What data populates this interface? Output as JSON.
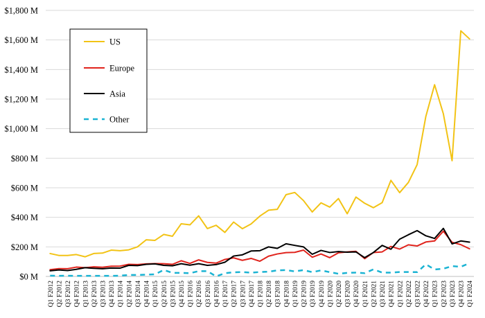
{
  "chart_data": {
    "type": "line",
    "title": "",
    "xlabel": "",
    "ylabel": "",
    "ylim": [
      0,
      1800
    ],
    "grid": "horizontal",
    "legend_position": "top-left",
    "y_ticks": [
      0,
      200,
      400,
      600,
      800,
      1000,
      1200,
      1400,
      1600,
      1800
    ],
    "y_tick_labels": [
      "$0 M",
      "$200 M",
      "$400 M",
      "$600 M",
      "$800 M",
      "$1,000 M",
      "$1,200 M",
      "$1,400 M",
      "$1,600 M",
      "$1,800 M"
    ],
    "categories": [
      "Q1 F2012",
      "Q2 F2012",
      "Q3 F2012",
      "Q4 F2012",
      "Q1 F2013",
      "Q2 F2013",
      "Q3 F2013",
      "Q4 F2013",
      "Q1 F2014",
      "Q2 F2014",
      "Q3 F2014",
      "Q4 F2014",
      "Q1 F2015",
      "Q2 F2015",
      "Q3 F2015",
      "Q4 F2015",
      "Q1 F2016",
      "Q2 F2016",
      "Q3 F2016",
      "Q4 F2016",
      "Q1 F2017",
      "Q2 F2017",
      "Q3 F2017",
      "Q4 F2017",
      "Q1 F2018",
      "Q2 F2018",
      "Q3 F2018",
      "Q4 F2018",
      "Q1 F2019",
      "Q2 F2019",
      "Q3 F2019",
      "Q4 F2019",
      "Q1 F2020",
      "Q2 F2020",
      "Q3 F2020",
      "Q4 F2020",
      "Q1 F2021",
      "Q2 F2021",
      "Q3 F2021",
      "Q4 F2021",
      "Q1 F2022",
      "Q2 F2022",
      "Q3 F2022",
      "Q4 F2022",
      "Q1 F2023",
      "Q2 F2023",
      "Q3 F2023",
      "Q4 F2023",
      "Q1 F2024"
    ],
    "series": [
      {
        "name": "US",
        "color": "#f2c315",
        "dash": "solid",
        "values": [
          155,
          142,
          142,
          148,
          133,
          155,
          158,
          178,
          174,
          180,
          200,
          248,
          244,
          284,
          272,
          356,
          349,
          410,
          324,
          346,
          298,
          368,
          323,
          355,
          408,
          448,
          454,
          553,
          568,
          513,
          436,
          498,
          469,
          527,
          424,
          537,
          495,
          465,
          499,
          650,
          567,
          636,
          756,
          1083,
          1297,
          1101,
          783,
          1662,
          1607
        ]
      },
      {
        "name": "Europe",
        "color": "#e0231c",
        "dash": "solid",
        "values": [
          46,
          53,
          52,
          63,
          59,
          65,
          62,
          69,
          70,
          82,
          80,
          85,
          87,
          86,
          82,
          106,
          88,
          112,
          95,
          90,
          115,
          126,
          109,
          122,
          103,
          137,
          152,
          161,
          163,
          178,
          130,
          152,
          127,
          160,
          166,
          170,
          120,
          162,
          166,
          203,
          185,
          214,
          206,
          233,
          240,
          306,
          231,
          215,
          187
        ]
      },
      {
        "name": "Asia",
        "color": "#000000",
        "dash": "solid",
        "values": [
          38,
          44,
          40,
          48,
          59,
          55,
          52,
          57,
          56,
          75,
          73,
          82,
          85,
          75,
          72,
          86,
          76,
          86,
          75,
          80,
          96,
          138,
          146,
          172,
          174,
          200,
          190,
          221,
          210,
          200,
          150,
          176,
          162,
          168,
          164,
          166,
          127,
          162,
          210,
          184,
          252,
          282,
          310,
          275,
          257,
          325,
          220,
          240,
          232
        ]
      },
      {
        "name": "Other",
        "color": "#1ab3d3",
        "dash": "dashed",
        "values": [
          5,
          4,
          5,
          4,
          4,
          4,
          4,
          4,
          5,
          10,
          10,
          12,
          14,
          44,
          24,
          24,
          22,
          36,
          36,
          0,
          22,
          28,
          30,
          25,
          30,
          32,
          41,
          43,
          34,
          43,
          29,
          41,
          29,
          18,
          24,
          26,
          22,
          48,
          26,
          26,
          30,
          30,
          29,
          82,
          47,
          52,
          70,
          65,
          90
        ]
      }
    ]
  }
}
